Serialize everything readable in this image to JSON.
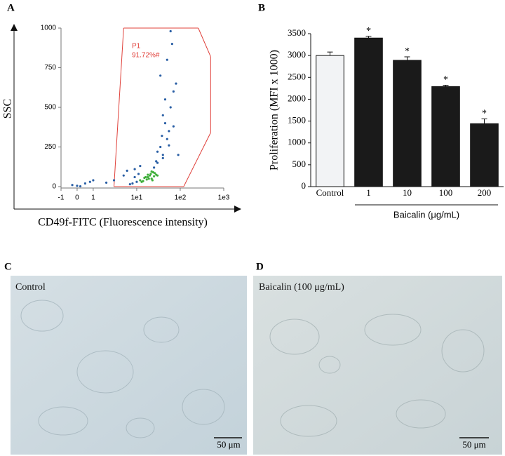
{
  "chart_data": [
    {
      "type": "scatter",
      "panel": "A",
      "x_label": "CD49f-FITC (Fluorescence intensity)",
      "y_label": "SSC",
      "xscale": "symlog",
      "xlim": [
        -1,
        1000
      ],
      "ylim": [
        0,
        1000
      ],
      "xticks": [
        -1,
        0,
        1,
        {
          "value": 10,
          "label": "1e1"
        },
        {
          "value": 100,
          "label": "1e2"
        },
        {
          "value": 1000,
          "label": "1e3"
        }
      ],
      "yticks": [
        0,
        250,
        500,
        750,
        1000
      ],
      "points": [
        {
          "color": "#2a5fa5",
          "x": [
            8,
            10,
            30,
            40,
            50,
            35,
            45,
            60,
            70,
            55,
            25,
            40,
            9,
            11,
            7,
            0,
            0.5,
            -0.3,
            0.8,
            1,
            0.2,
            2,
            3,
            5,
            6,
            35,
            50,
            65,
            80,
            45,
            30,
            40,
            55,
            28,
            38,
            12,
            9,
            70,
            90,
            60
          ],
          "y": [
            20,
            30,
            150,
            200,
            300,
            250,
            400,
            500,
            600,
            350,
            120,
            450,
            60,
            80,
            15,
            5,
            20,
            10,
            30,
            40,
            2,
            25,
            40,
            70,
            100,
            700,
            800,
            900,
            650,
            550,
            220,
            180,
            260,
            160,
            320,
            130,
            110,
            380,
            200,
            980
          ]
        },
        {
          "color": "#3fae3a",
          "x": [
            12,
            15,
            18,
            20,
            22,
            25,
            14,
            17,
            21,
            24,
            28,
            16,
            19,
            23,
            26,
            30,
            13,
            18,
            22
          ],
          "y": [
            40,
            55,
            60,
            70,
            50,
            65,
            35,
            45,
            80,
            90,
            75,
            60,
            50,
            40,
            85,
            70,
            30,
            75,
            95
          ]
        }
      ],
      "gate": {
        "name": "P1",
        "label": "91.72%#",
        "color": "#e0403a",
        "x": [
          3,
          5,
          260,
          500,
          500,
          120,
          3
        ],
        "y": [
          0,
          1000,
          1000,
          820,
          340,
          0,
          0
        ]
      }
    },
    {
      "type": "bar",
      "panel": "B",
      "y_label": "Proliferation (MFI x 1000)",
      "categories": [
        "Control",
        "1",
        "10",
        "100",
        "200"
      ],
      "values": [
        3000,
        3400,
        2890,
        2290,
        1440
      ],
      "errors": [
        80,
        40,
        80,
        30,
        110
      ],
      "colors": [
        "#f2f3f5",
        "#1a1a1a",
        "#1a1a1a",
        "#1a1a1a",
        "#1a1a1a"
      ],
      "annotations": [
        null,
        "*",
        "*",
        "*",
        "*"
      ],
      "group_label": "Baicalin (μg/mL)",
      "ylim": [
        0,
        3500
      ],
      "yticks": [
        0,
        500,
        1000,
        1500,
        2000,
        2500,
        3000,
        3500
      ]
    }
  ],
  "images": [
    {
      "panel": "C",
      "caption": "Control",
      "scale_label": "50 μm"
    },
    {
      "panel": "D",
      "caption": "Baicalin (100 μg/mL)",
      "scale_label": "50 μm"
    }
  ]
}
